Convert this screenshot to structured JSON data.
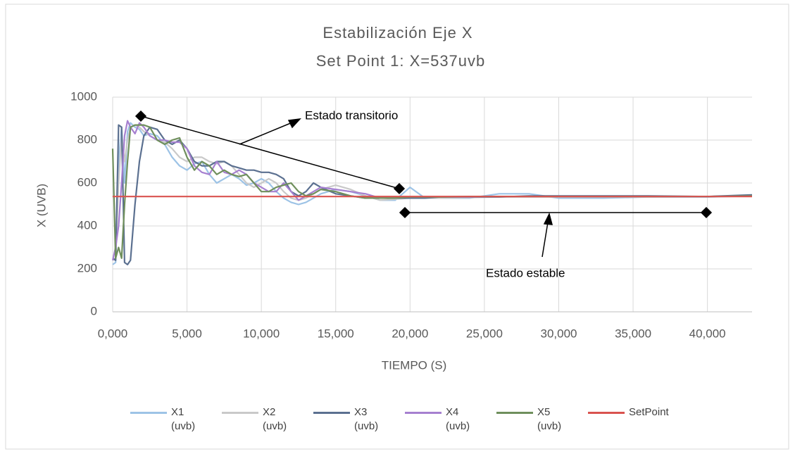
{
  "chart_data": {
    "type": "line",
    "title": "Estabilización Eje X",
    "subtitle": "Set Point 1: X=537uvb",
    "x_label": "TIEMPO (S)",
    "y_label": "X (UVB)",
    "annotations": [
      "Estado transitorio",
      "Estado estable"
    ],
    "x": [
      0,
      0.2,
      0.4,
      0.6,
      0.8,
      1.0,
      1.2,
      1.5,
      1.8,
      2.1,
      2.5,
      3,
      3.5,
      4,
      4.5,
      5,
      5.5,
      6,
      6.5,
      7,
      7.5,
      8,
      8.5,
      9,
      9.5,
      10,
      10.5,
      11,
      11.5,
      12,
      12.5,
      13,
      13.5,
      14,
      15,
      16,
      17,
      18,
      19,
      20,
      21,
      22,
      24,
      26,
      28,
      30,
      33,
      36,
      40,
      43
    ],
    "series": [
      {
        "name": "X1 (uvb)",
        "color": "#9dc3e6",
        "values": [
          220,
          230,
          700,
          860,
          600,
          840,
          880,
          860,
          850,
          820,
          830,
          820,
          780,
          720,
          680,
          660,
          690,
          700,
          640,
          600,
          620,
          640,
          620,
          590,
          600,
          620,
          600,
          560,
          530,
          510,
          500,
          510,
          530,
          550,
          570,
          560,
          540,
          520,
          520,
          580,
          530,
          530,
          530,
          550,
          550,
          530,
          530,
          535,
          535,
          540
        ]
      },
      {
        "name": "X2 (uvb)",
        "color": "#c9c9c9",
        "values": [
          240,
          250,
          600,
          820,
          700,
          800,
          860,
          870,
          860,
          840,
          820,
          800,
          790,
          760,
          720,
          700,
          720,
          720,
          700,
          690,
          700,
          680,
          640,
          600,
          580,
          600,
          620,
          600,
          560,
          530,
          520,
          530,
          550,
          570,
          590,
          570,
          540,
          520,
          525,
          530,
          530,
          530,
          532,
          535,
          535,
          535,
          535,
          535,
          537,
          540
        ]
      },
      {
        "name": "X3 (uvb)",
        "color": "#5b7090",
        "values": [
          250,
          240,
          870,
          860,
          230,
          220,
          240,
          500,
          700,
          820,
          860,
          850,
          800,
          780,
          800,
          760,
          700,
          680,
          680,
          700,
          700,
          680,
          670,
          660,
          660,
          650,
          650,
          640,
          620,
          560,
          540,
          560,
          600,
          580,
          550,
          540,
          530,
          530,
          530,
          530,
          530,
          535,
          535,
          535,
          540,
          540,
          540,
          540,
          537,
          545
        ]
      },
      {
        "name": "X4 (uvb)",
        "color": "#a680d0",
        "values": [
          240,
          300,
          400,
          600,
          820,
          890,
          860,
          830,
          880,
          860,
          820,
          800,
          800,
          790,
          790,
          760,
          680,
          650,
          640,
          700,
          650,
          640,
          660,
          640,
          600,
          580,
          560,
          560,
          600,
          560,
          520,
          540,
          560,
          580,
          570,
          560,
          550,
          530,
          530,
          535,
          535,
          535,
          535,
          537,
          537,
          537,
          537,
          537,
          537,
          540
        ]
      },
      {
        "name": "X5 (uvb)",
        "color": "#6f8f5c",
        "values": [
          760,
          250,
          300,
          250,
          500,
          700,
          860,
          870,
          870,
          870,
          860,
          800,
          780,
          800,
          810,
          720,
          660,
          700,
          680,
          640,
          660,
          640,
          630,
          640,
          600,
          560,
          560,
          580,
          590,
          600,
          560,
          540,
          550,
          570,
          560,
          540,
          530,
          530,
          530,
          535,
          535,
          535,
          537,
          537,
          537,
          537,
          537,
          537,
          537,
          540
        ]
      },
      {
        "name": "SetPoint",
        "color": "#d9534f",
        "values": [
          537,
          537,
          537,
          537,
          537,
          537,
          537,
          537,
          537,
          537,
          537,
          537,
          537,
          537,
          537,
          537,
          537,
          537,
          537,
          537,
          537,
          537,
          537,
          537,
          537,
          537,
          537,
          537,
          537,
          537,
          537,
          537,
          537,
          537,
          537,
          537,
          537,
          537,
          537,
          537,
          537,
          537,
          537,
          537,
          537,
          537,
          537,
          537,
          537,
          537
        ]
      }
    ],
    "xlim": [
      0,
      43
    ],
    "xticks": [
      {
        "value": 0,
        "label": "0,000"
      },
      {
        "value": 5,
        "label": "5,000"
      },
      {
        "value": 10,
        "label": "10,000"
      },
      {
        "value": 15,
        "label": "15,000"
      },
      {
        "value": 20,
        "label": "20,000"
      },
      {
        "value": 25,
        "label": "25,000"
      },
      {
        "value": 30,
        "label": "30,000"
      },
      {
        "value": 35,
        "label": "35,000"
      },
      {
        "value": 40,
        "label": "40,000"
      }
    ],
    "ylim": [
      0,
      1000
    ],
    "yticks": [
      0,
      200,
      400,
      600,
      800,
      1000
    ],
    "grid": true,
    "legend": "bottom"
  }
}
